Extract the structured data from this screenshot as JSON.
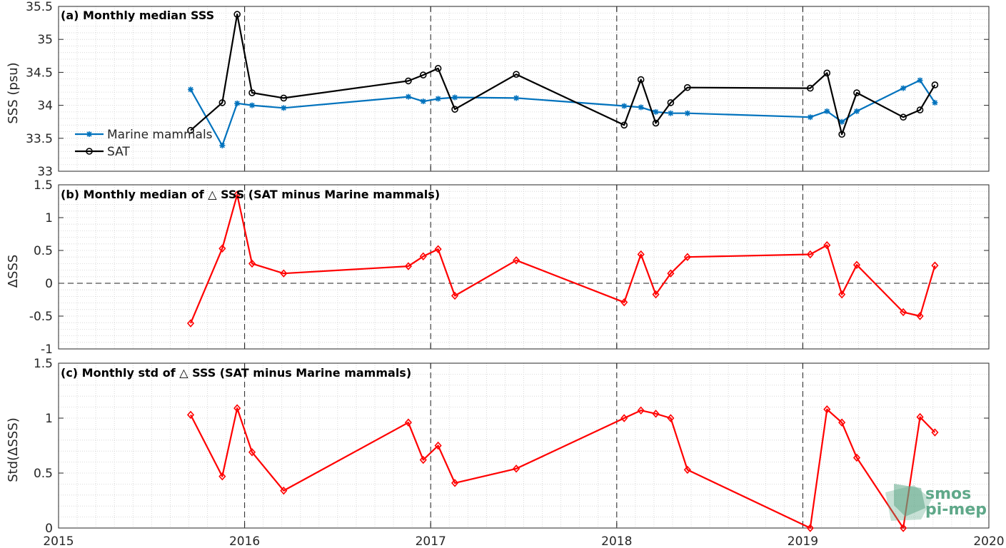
{
  "chart_data": [
    {
      "type": "line",
      "title": "(a) Monthly median SSS",
      "ylabel": "SSS (psu)",
      "xlabel": "",
      "xlim": [
        2015,
        2020
      ],
      "ylim": [
        33,
        35.5
      ],
      "yticks": [
        33,
        33.5,
        34,
        34.5,
        35,
        35.5
      ],
      "ytick_labels": [
        "33",
        "33.5",
        "34",
        "34.5",
        "35",
        "35.5"
      ],
      "grid": true,
      "vertical_reference_lines": [
        2016,
        2017,
        2018,
        2019
      ],
      "legend_position": "left",
      "series": [
        {
          "name": "Marine mammals",
          "color": "#0072BD",
          "marker": "asterisk",
          "points": [
            [
              2015.71,
              34.24
            ],
            [
              2015.88,
              33.39
            ],
            [
              2015.96,
              34.03
            ],
            [
              2016.04,
              34.0
            ],
            [
              2016.21,
              33.96
            ],
            [
              2016.88,
              34.13
            ],
            [
              2016.96,
              34.06
            ],
            [
              2017.04,
              34.1
            ],
            [
              2017.13,
              34.12
            ],
            [
              2017.46,
              34.11
            ],
            [
              2018.04,
              33.99
            ],
            [
              2018.13,
              33.97
            ],
            [
              2018.21,
              33.9
            ],
            [
              2018.29,
              33.88
            ],
            [
              2018.38,
              33.88
            ],
            [
              2019.04,
              33.82
            ],
            [
              2019.13,
              33.91
            ],
            [
              2019.21,
              33.75
            ],
            [
              2019.29,
              33.91
            ],
            [
              2019.54,
              34.26
            ],
            [
              2019.63,
              34.38
            ],
            [
              2019.71,
              34.04
            ]
          ]
        },
        {
          "name": "SAT",
          "color": "#000000",
          "marker": "circle",
          "points": [
            [
              2015.71,
              33.62
            ],
            [
              2015.88,
              34.04
            ],
            [
              2015.96,
              35.38
            ],
            [
              2016.04,
              34.19
            ],
            [
              2016.21,
              34.11
            ],
            [
              2016.88,
              34.37
            ],
            [
              2016.96,
              34.46
            ],
            [
              2017.04,
              34.56
            ],
            [
              2017.13,
              33.94
            ],
            [
              2017.46,
              34.47
            ],
            [
              2018.04,
              33.7
            ],
            [
              2018.13,
              34.39
            ],
            [
              2018.21,
              33.73
            ],
            [
              2018.29,
              34.04
            ],
            [
              2018.38,
              34.27
            ],
            [
              2019.04,
              34.26
            ],
            [
              2019.13,
              34.49
            ],
            [
              2019.21,
              33.56
            ],
            [
              2019.29,
              34.19
            ],
            [
              2019.54,
              33.82
            ],
            [
              2019.63,
              33.93
            ],
            [
              2019.71,
              34.31
            ]
          ]
        }
      ]
    },
    {
      "type": "line",
      "title": "(b) Monthly median of △ SSS (SAT minus Marine mammals)",
      "ylabel": "ΔSSS",
      "xlabel": "",
      "xlim": [
        2015,
        2020
      ],
      "ylim": [
        -1,
        1.5
      ],
      "yticks": [
        -1,
        -0.5,
        0,
        0.5,
        1,
        1.5
      ],
      "ytick_labels": [
        "-1",
        "-0.5",
        "0",
        "0.5",
        "1",
        "1.5"
      ],
      "grid": true,
      "horizontal_reference_line": 0,
      "vertical_reference_lines": [
        2016,
        2017,
        2018,
        2019
      ],
      "series": [
        {
          "color": "#FF0000",
          "marker": "diamond",
          "points": [
            [
              2015.71,
              -0.61
            ],
            [
              2015.88,
              0.53
            ],
            [
              2015.96,
              1.35
            ],
            [
              2016.04,
              0.3
            ],
            [
              2016.21,
              0.15
            ],
            [
              2016.88,
              0.26
            ],
            [
              2016.96,
              0.41
            ],
            [
              2017.04,
              0.52
            ],
            [
              2017.13,
              -0.19
            ],
            [
              2017.46,
              0.35
            ],
            [
              2018.04,
              -0.29
            ],
            [
              2018.13,
              0.44
            ],
            [
              2018.21,
              -0.17
            ],
            [
              2018.29,
              0.15
            ],
            [
              2018.38,
              0.4
            ],
            [
              2019.04,
              0.44
            ],
            [
              2019.13,
              0.58
            ],
            [
              2019.21,
              -0.17
            ],
            [
              2019.29,
              0.28
            ],
            [
              2019.54,
              -0.44
            ],
            [
              2019.63,
              -0.5
            ],
            [
              2019.71,
              0.27
            ]
          ]
        }
      ]
    },
    {
      "type": "line",
      "title": "(c) Monthly std of △ SSS (SAT minus Marine mammals)",
      "ylabel": "Std(ΔSSS)",
      "xlabel": "",
      "xlim": [
        2015,
        2020
      ],
      "ylim": [
        0,
        1.5
      ],
      "yticks": [
        0,
        0.5,
        1,
        1.5
      ],
      "ytick_labels": [
        "0",
        "0.5",
        "1",
        "1.5"
      ],
      "xticks": [
        2015,
        2016,
        2017,
        2018,
        2019,
        2020
      ],
      "xtick_labels": [
        "2015",
        "2016",
        "2017",
        "2018",
        "2019",
        "2020"
      ],
      "grid": true,
      "vertical_reference_lines": [
        2016,
        2017,
        2018,
        2019
      ],
      "series": [
        {
          "color": "#FF0000",
          "marker": "diamond",
          "points": [
            [
              2015.71,
              1.03
            ],
            [
              2015.88,
              0.47
            ],
            [
              2015.96,
              1.09
            ],
            [
              2016.04,
              0.69
            ],
            [
              2016.21,
              0.34
            ],
            [
              2016.88,
              0.96
            ],
            [
              2016.96,
              0.62
            ],
            [
              2017.04,
              0.75
            ],
            [
              2017.13,
              0.41
            ],
            [
              2017.46,
              0.54
            ],
            [
              2018.04,
              1.0
            ],
            [
              2018.13,
              1.07
            ],
            [
              2018.21,
              1.04
            ],
            [
              2018.29,
              1.0
            ],
            [
              2018.38,
              0.53
            ],
            [
              2019.04,
              0.0
            ],
            [
              2019.13,
              1.08
            ],
            [
              2019.21,
              0.96
            ],
            [
              2019.29,
              0.64
            ],
            [
              2019.54,
              0.0
            ],
            [
              2019.63,
              1.01
            ],
            [
              2019.71,
              0.87
            ]
          ]
        }
      ]
    }
  ],
  "logo": {
    "line1": "smos",
    "line2": "pi-mep",
    "color": "#5fa889"
  }
}
